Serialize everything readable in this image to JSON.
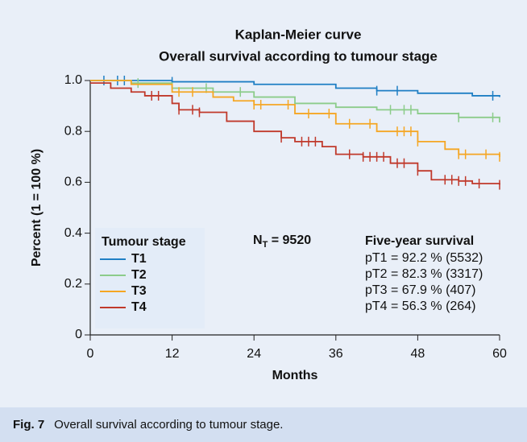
{
  "chart_data": {
    "type": "step",
    "title": [
      "Kaplan-Meier curve",
      "Overall survival according to tumour stage"
    ],
    "x_label": "Months",
    "y_label": "Percent (1 = 100 %)",
    "xlim": [
      0,
      60
    ],
    "xticks": [
      0,
      12,
      24,
      36,
      48,
      60
    ],
    "ylim": [
      0,
      1
    ],
    "yticks": [
      0,
      0.2,
      0.4,
      0.6,
      0.8,
      {
        "value": 1,
        "label": "1.0"
      }
    ],
    "grid": false,
    "legend_title": "Tumour stage",
    "series": [
      {
        "name": "T1",
        "color": "#1f7fc4",
        "x": [
          0,
          12,
          24,
          36,
          42,
          48,
          56,
          60
        ],
        "values": [
          1.0,
          0.995,
          0.985,
          0.97,
          0.96,
          0.95,
          0.94,
          0.935
        ],
        "censored": [
          2,
          4,
          5,
          12,
          42,
          45,
          59
        ]
      },
      {
        "name": "T2",
        "color": "#8ccc8a",
        "x": [
          0,
          6,
          12,
          18,
          24,
          30,
          36,
          42,
          48,
          54,
          60
        ],
        "values": [
          1.0,
          0.99,
          0.97,
          0.955,
          0.935,
          0.91,
          0.895,
          0.885,
          0.87,
          0.855,
          0.835
        ],
        "censored": [
          7,
          17,
          22,
          44,
          46,
          47,
          54,
          59
        ]
      },
      {
        "name": "T3",
        "color": "#f5a623",
        "x": [
          0,
          6,
          12,
          18,
          21,
          24,
          30,
          36,
          42,
          48,
          52,
          54,
          60
        ],
        "values": [
          1.0,
          0.985,
          0.955,
          0.935,
          0.92,
          0.905,
          0.87,
          0.83,
          0.8,
          0.76,
          0.73,
          0.71,
          0.7
        ],
        "censored": [
          13,
          15,
          24,
          25,
          29,
          32,
          35,
          38,
          41,
          45,
          46,
          47,
          48,
          54,
          55,
          58,
          60
        ]
      },
      {
        "name": "T4",
        "color": "#c0392b",
        "x": [
          0,
          3,
          6,
          8,
          12,
          13,
          16,
          20,
          24,
          28,
          30,
          34,
          36,
          40,
          44,
          48,
          50,
          54,
          56,
          60
        ],
        "values": [
          0.99,
          0.97,
          0.955,
          0.94,
          0.91,
          0.885,
          0.875,
          0.84,
          0.8,
          0.775,
          0.76,
          0.74,
          0.71,
          0.7,
          0.675,
          0.645,
          0.61,
          0.605,
          0.595,
          0.59
        ],
        "censored": [
          9,
          10,
          13,
          15,
          16,
          28,
          31,
          32,
          33,
          38,
          40,
          41,
          42,
          43,
          45,
          46,
          48,
          52,
          53,
          54,
          55,
          57,
          60
        ]
      }
    ],
    "n_total": {
      "symbol": "N",
      "subscript": "T",
      "rest": " = 9520"
    },
    "survival_table": {
      "title": "Five-year survival",
      "rows": [
        "pT1 = 92.2 % (5532)",
        "pT2 = 82.3 % (3317)",
        "pT3 = 67.9 % (407)",
        "pT4 = 56.3 % (264)"
      ]
    }
  },
  "caption": {
    "label": "Fig. 7",
    "text": "Overall survival according to tumour stage."
  }
}
